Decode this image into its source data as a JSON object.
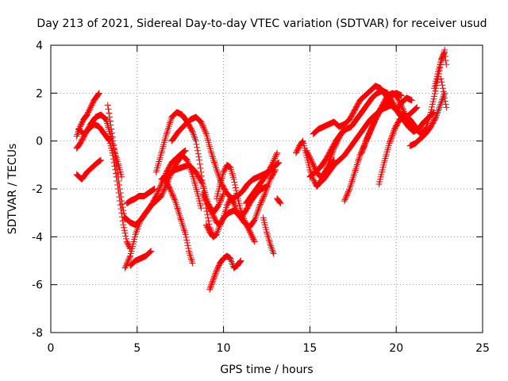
{
  "chart_data": {
    "type": "scatter",
    "title": "Day 213 of 2021, Sidereal Day-to-day VTEC variation (SDTVAR) for receiver usud",
    "xlabel": "GPS time / hours",
    "ylabel": "SDTVAR / TECUs",
    "xlim": [
      0,
      25
    ],
    "ylim": [
      -8,
      4
    ],
    "x_ticks": [
      0,
      5,
      10,
      15,
      20,
      25
    ],
    "y_ticks": [
      -8,
      -6,
      -4,
      -2,
      0,
      2,
      4
    ],
    "grid": true,
    "legend": "none",
    "marker": "+",
    "color": "#ff0000",
    "series": [
      {
        "x": [
          1.5,
          1.7,
          1.9,
          2.1,
          2.3,
          2.5,
          2.7,
          2.8
        ],
        "y": [
          0.2,
          0.6,
          0.9,
          1.1,
          1.4,
          1.7,
          1.9,
          2.0
        ]
      },
      {
        "x": [
          1.5,
          1.7,
          2.0,
          2.3,
          2.6,
          2.9,
          3.2,
          3.4,
          3.6,
          3.8,
          4.0,
          4.1
        ],
        "y": [
          -0.3,
          -0.1,
          0.3,
          0.7,
          1.0,
          1.1,
          0.9,
          0.4,
          -0.2,
          -0.7,
          -1.2,
          -1.5
        ]
      },
      {
        "x": [
          1.6,
          1.9,
          2.2,
          2.5,
          2.8,
          3.1,
          3.4,
          3.6,
          3.8,
          4.0,
          4.2,
          4.4,
          4.6
        ],
        "y": [
          0.5,
          0.3,
          0.5,
          0.7,
          0.6,
          0.3,
          0.0,
          -0.6,
          -1.5,
          -2.5,
          -3.5,
          -4.2,
          -4.5
        ]
      },
      {
        "x": [
          1.5,
          1.8,
          2.1,
          2.4,
          2.7,
          2.9
        ],
        "y": [
          -1.4,
          -1.6,
          -1.3,
          -1.1,
          -0.9,
          -0.8
        ]
      },
      {
        "x": [
          3.3,
          3.5,
          3.7,
          3.9,
          4.1,
          4.3
        ],
        "y": [
          1.5,
          0.5,
          -0.5,
          -1.5,
          -2.5,
          -3.3
        ]
      },
      {
        "x": [
          4.3,
          4.6,
          4.9,
          5.2,
          5.5,
          5.8,
          6.1,
          6.4,
          6.7,
          7.0,
          7.3,
          7.6,
          7.9,
          8.2,
          8.5,
          8.7
        ],
        "y": [
          -5.3,
          -4.8,
          -3.9,
          -3.3,
          -3.0,
          -2.7,
          -2.5,
          -2.3,
          -1.8,
          -1.3,
          -0.9,
          -0.6,
          -0.8,
          -1.4,
          -2.2,
          -2.8
        ]
      },
      {
        "x": [
          4.4,
          4.6,
          4.9,
          5.1,
          5.4,
          5.6,
          5.8,
          6.0
        ],
        "y": [
          -2.6,
          -2.5,
          -2.4,
          -2.3,
          -2.3,
          -2.2,
          -2.1,
          -2.0
        ]
      },
      {
        "x": [
          4.3,
          4.6,
          4.9,
          5.2,
          5.5,
          5.8,
          6.1,
          6.4,
          6.7,
          7.0,
          7.3,
          7.6,
          7.8
        ],
        "y": [
          -3.2,
          -3.4,
          -3.5,
          -3.3,
          -3.0,
          -2.7,
          -2.3,
          -1.8,
          -1.3,
          -0.9,
          -0.7,
          -0.5,
          -0.4
        ]
      },
      {
        "x": [
          4.6,
          4.9,
          5.2,
          5.5,
          5.8
        ],
        "y": [
          -5.2,
          -5.0,
          -4.9,
          -4.8,
          -4.6
        ]
      },
      {
        "x": [
          6.1,
          6.4,
          6.7,
          7.0,
          7.3,
          7.6,
          7.9,
          8.2,
          8.4,
          8.6,
          8.8,
          9.0,
          9.2,
          9.4
        ],
        "y": [
          -1.3,
          -0.5,
          0.3,
          1.0,
          1.2,
          1.1,
          0.8,
          0.4,
          0.0,
          -0.8,
          -1.8,
          -2.8,
          -3.6,
          -4.0
        ]
      },
      {
        "x": [
          6.4,
          6.8,
          7.2,
          7.6,
          8.0,
          8.4,
          8.8,
          9.1,
          9.4,
          9.7,
          10.0
        ],
        "y": [
          -1.6,
          -1.4,
          -1.2,
          -1.1,
          -1.0,
          -1.3,
          -1.8,
          -2.6,
          -3.0,
          -2.7,
          -2.2
        ]
      },
      {
        "x": [
          6.6,
          6.9,
          7.2,
          7.5,
          7.8,
          8.0,
          8.2
        ],
        "y": [
          -1.6,
          -2.0,
          -2.5,
          -3.2,
          -3.9,
          -4.6,
          -5.1
        ]
      },
      {
        "x": [
          7.0,
          7.4,
          7.8,
          8.1,
          8.4,
          8.7,
          9.0,
          9.3,
          9.6,
          9.9,
          10.2,
          10.5,
          10.8,
          11.1,
          11.4,
          11.7,
          12.0,
          12.3,
          12.6,
          12.9,
          13.2
        ],
        "y": [
          0.0,
          0.4,
          0.7,
          0.9,
          1.0,
          0.8,
          0.3,
          -0.5,
          -1.2,
          -1.8,
          -2.2,
          -2.4,
          -2.3,
          -2.1,
          -1.8,
          -1.6,
          -1.5,
          -1.4,
          -1.3,
          -1.1,
          -0.9
        ]
      },
      {
        "x": [
          8.8,
          9.0,
          9.2,
          9.4,
          9.6,
          9.8,
          10.0,
          10.2,
          10.4,
          10.6,
          10.8,
          11.0,
          11.3,
          11.6,
          11.9,
          12.2,
          12.5
        ],
        "y": [
          -2.2,
          -2.5,
          -2.8,
          -3.1,
          -3.4,
          -3.5,
          -3.2,
          -2.7,
          -2.4,
          -2.6,
          -3.0,
          -3.2,
          -2.9,
          -2.5,
          -2.2,
          -2.0,
          -1.9
        ]
      },
      {
        "x": [
          9.0,
          9.2,
          9.4,
          9.6,
          9.8,
          10.0,
          10.3,
          10.6,
          10.9,
          11.2,
          11.5,
          11.8,
          12.1,
          12.4,
          12.7,
          13.0
        ],
        "y": [
          -3.5,
          -3.8,
          -4.0,
          -3.9,
          -3.5,
          -3.2,
          -3.0,
          -2.9,
          -3.1,
          -3.4,
          -3.6,
          -3.3,
          -2.7,
          -2.2,
          -1.6,
          -1.2
        ]
      },
      {
        "x": [
          9.2,
          9.4,
          9.6,
          9.8,
          10.0,
          10.2,
          10.4,
          10.6,
          10.8,
          11.0
        ],
        "y": [
          -6.2,
          -5.8,
          -5.4,
          -5.1,
          -4.9,
          -4.8,
          -4.9,
          -5.3,
          -5.2,
          -5.0
        ]
      },
      {
        "x": [
          9.6,
          9.8,
          10.0,
          10.2,
          10.4,
          10.6,
          10.8,
          11.0,
          11.2,
          11.4,
          11.6,
          11.8
        ],
        "y": [
          -2.4,
          -1.8,
          -1.3,
          -1.0,
          -1.1,
          -1.6,
          -2.3,
          -2.9,
          -3.3,
          -3.6,
          -3.9,
          -4.2
        ]
      },
      {
        "x": [
          11.3,
          11.6,
          11.9,
          12.2,
          12.5,
          12.8,
          13.1
        ],
        "y": [
          -2.6,
          -2.3,
          -2.0,
          -1.7,
          -1.4,
          -1.0,
          -0.5
        ]
      },
      {
        "x": [
          12.3,
          12.5,
          12.7,
          12.9
        ],
        "y": [
          -3.2,
          -3.8,
          -4.3,
          -4.7
        ]
      },
      {
        "x": [
          13.1,
          13.2,
          13.3
        ],
        "y": [
          -2.4,
          -2.5,
          -2.6
        ]
      },
      {
        "x": [
          14.2,
          14.4,
          14.6,
          14.8,
          15.0,
          15.2,
          15.4,
          15.6,
          15.8,
          16.0,
          16.2,
          16.4,
          16.6,
          16.8,
          17.0
        ],
        "y": [
          -0.5,
          -0.2,
          0.0,
          -0.6,
          -1.2,
          -1.6,
          -1.9,
          -1.7,
          -1.4,
          -1.1,
          -0.7,
          -0.3,
          0.0,
          0.3,
          0.5
        ]
      },
      {
        "x": [
          14.8,
          15.0,
          15.2,
          15.4,
          15.6,
          15.8,
          16.0,
          16.2,
          16.4
        ],
        "y": [
          -0.4,
          -0.7,
          -1.0,
          -1.3,
          -1.5,
          -1.4,
          -1.2,
          -1.0,
          -0.8
        ]
      },
      {
        "x": [
          15.0,
          15.3,
          15.6,
          15.9,
          16.2,
          16.5,
          16.8,
          17.1,
          17.4,
          17.7,
          18.0,
          18.3,
          18.6,
          18.9,
          19.2,
          19.5,
          19.8,
          20.1,
          20.4,
          20.7,
          21.0
        ],
        "y": [
          -1.5,
          -1.3,
          -1.1,
          -0.8,
          -0.4,
          0.0,
          0.3,
          0.5,
          0.6,
          0.9,
          1.2,
          1.5,
          1.8,
          2.0,
          2.1,
          2.0,
          1.6,
          1.2,
          0.9,
          0.6,
          0.4
        ]
      },
      {
        "x": [
          15.2,
          15.5,
          15.8,
          16.1,
          16.4,
          16.7,
          17.0,
          17.3,
          17.6,
          17.9,
          18.2,
          18.5,
          18.8,
          19.1,
          19.4,
          19.7,
          20.0,
          20.3,
          20.6,
          20.9
        ],
        "y": [
          0.3,
          0.5,
          0.6,
          0.7,
          0.8,
          0.6,
          0.7,
          0.9,
          1.3,
          1.7,
          1.9,
          2.1,
          2.3,
          2.2,
          1.9,
          1.5,
          1.3,
          1.6,
          1.8,
          1.7
        ]
      },
      {
        "x": [
          15.5,
          15.8,
          16.1,
          16.4,
          16.7,
          17.0,
          17.3,
          17.6,
          17.9,
          18.2,
          18.5,
          18.8,
          19.1,
          19.4,
          19.7,
          20.0,
          20.3,
          20.6,
          20.9,
          21.2
        ],
        "y": [
          -1.8,
          -1.6,
          -1.3,
          -1.0,
          -0.8,
          -0.6,
          -0.3,
          0.0,
          0.3,
          0.6,
          0.9,
          1.1,
          1.3,
          1.4,
          1.5,
          1.3,
          1.1,
          1.0,
          1.2,
          1.4
        ]
      },
      {
        "x": [
          17.0,
          17.3,
          17.6,
          17.9,
          18.2,
          18.5,
          18.8,
          19.1,
          19.4,
          19.7,
          20.0,
          20.3
        ],
        "y": [
          -2.5,
          -2.0,
          -1.3,
          -0.6,
          -0.1,
          0.4,
          0.9,
          1.3,
          1.6,
          1.9,
          2.0,
          1.9
        ]
      },
      {
        "x": [
          18.0,
          18.3,
          18.6,
          18.9,
          19.2,
          19.5,
          19.8,
          20.1,
          20.4,
          20.7,
          21.0,
          21.3,
          21.6,
          21.9,
          22.2
        ],
        "y": [
          -0.5,
          0.1,
          0.6,
          1.1,
          1.5,
          1.9,
          2.0,
          1.8,
          1.3,
          0.7,
          0.4,
          0.5,
          0.8,
          1.0,
          1.2
        ]
      },
      {
        "x": [
          19.0,
          19.3,
          19.6,
          19.9,
          20.2,
          20.5,
          20.8,
          21.1,
          21.4,
          21.7,
          22.0,
          22.3,
          22.6,
          22.8
        ],
        "y": [
          -1.8,
          -0.9,
          -0.1,
          0.5,
          0.9,
          1.1,
          0.9,
          0.6,
          0.3,
          0.5,
          1.2,
          2.2,
          3.3,
          3.8
        ]
      },
      {
        "x": [
          20.8,
          21.1,
          21.4,
          21.7,
          22.0,
          22.3,
          22.6,
          22.8
        ],
        "y": [
          -0.2,
          -0.1,
          0.1,
          0.3,
          0.6,
          1.0,
          1.6,
          2.0
        ]
      },
      {
        "x": [
          22.2,
          22.4,
          22.6,
          22.8,
          22.9
        ],
        "y": [
          2.2,
          2.8,
          3.4,
          3.7,
          3.2
        ]
      },
      {
        "x": [
          22.6,
          22.7,
          22.8,
          22.9
        ],
        "y": [
          2.6,
          2.2,
          1.8,
          1.4
        ]
      }
    ]
  }
}
